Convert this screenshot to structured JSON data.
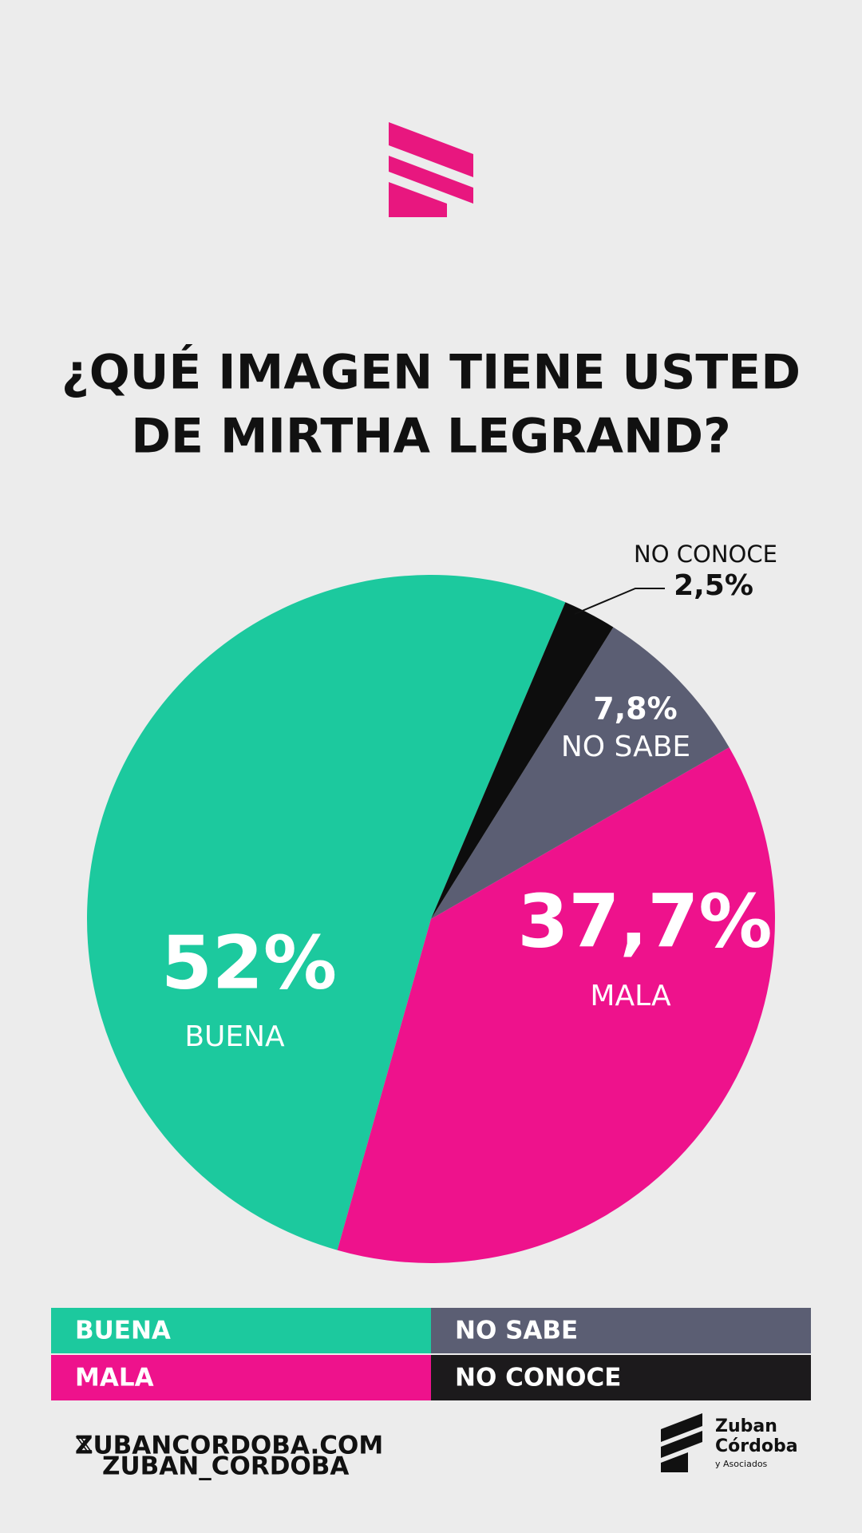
{
  "chart_data": {
    "type": "pie",
    "title": [
      "¿QUÉ IMAGEN TIENE USTED",
      "DE MIRTHA LEGRAND?"
    ],
    "categories": [
      "BUENA",
      "MALA",
      "NO SABE",
      "NO CONOCE"
    ],
    "values": [
      52,
      37.7,
      7.8,
      2.5
    ],
    "value_labels": [
      "52%",
      "37,7%",
      "7,8%",
      "2,5%"
    ],
    "colors": [
      "#1cc99e",
      "#ee128c",
      "#5b5e73",
      "#0d0d0d"
    ],
    "legend_colors": [
      "#1cc99e",
      "#ee128c",
      "#5b5e73",
      "#1c1a1c"
    ]
  },
  "footer": {
    "website": "ZUBANCORDOBA.COM",
    "handle": "ZUBAN_CORDOBA",
    "brand": [
      "Zuban",
      "Córdoba",
      "y Asociados"
    ]
  }
}
